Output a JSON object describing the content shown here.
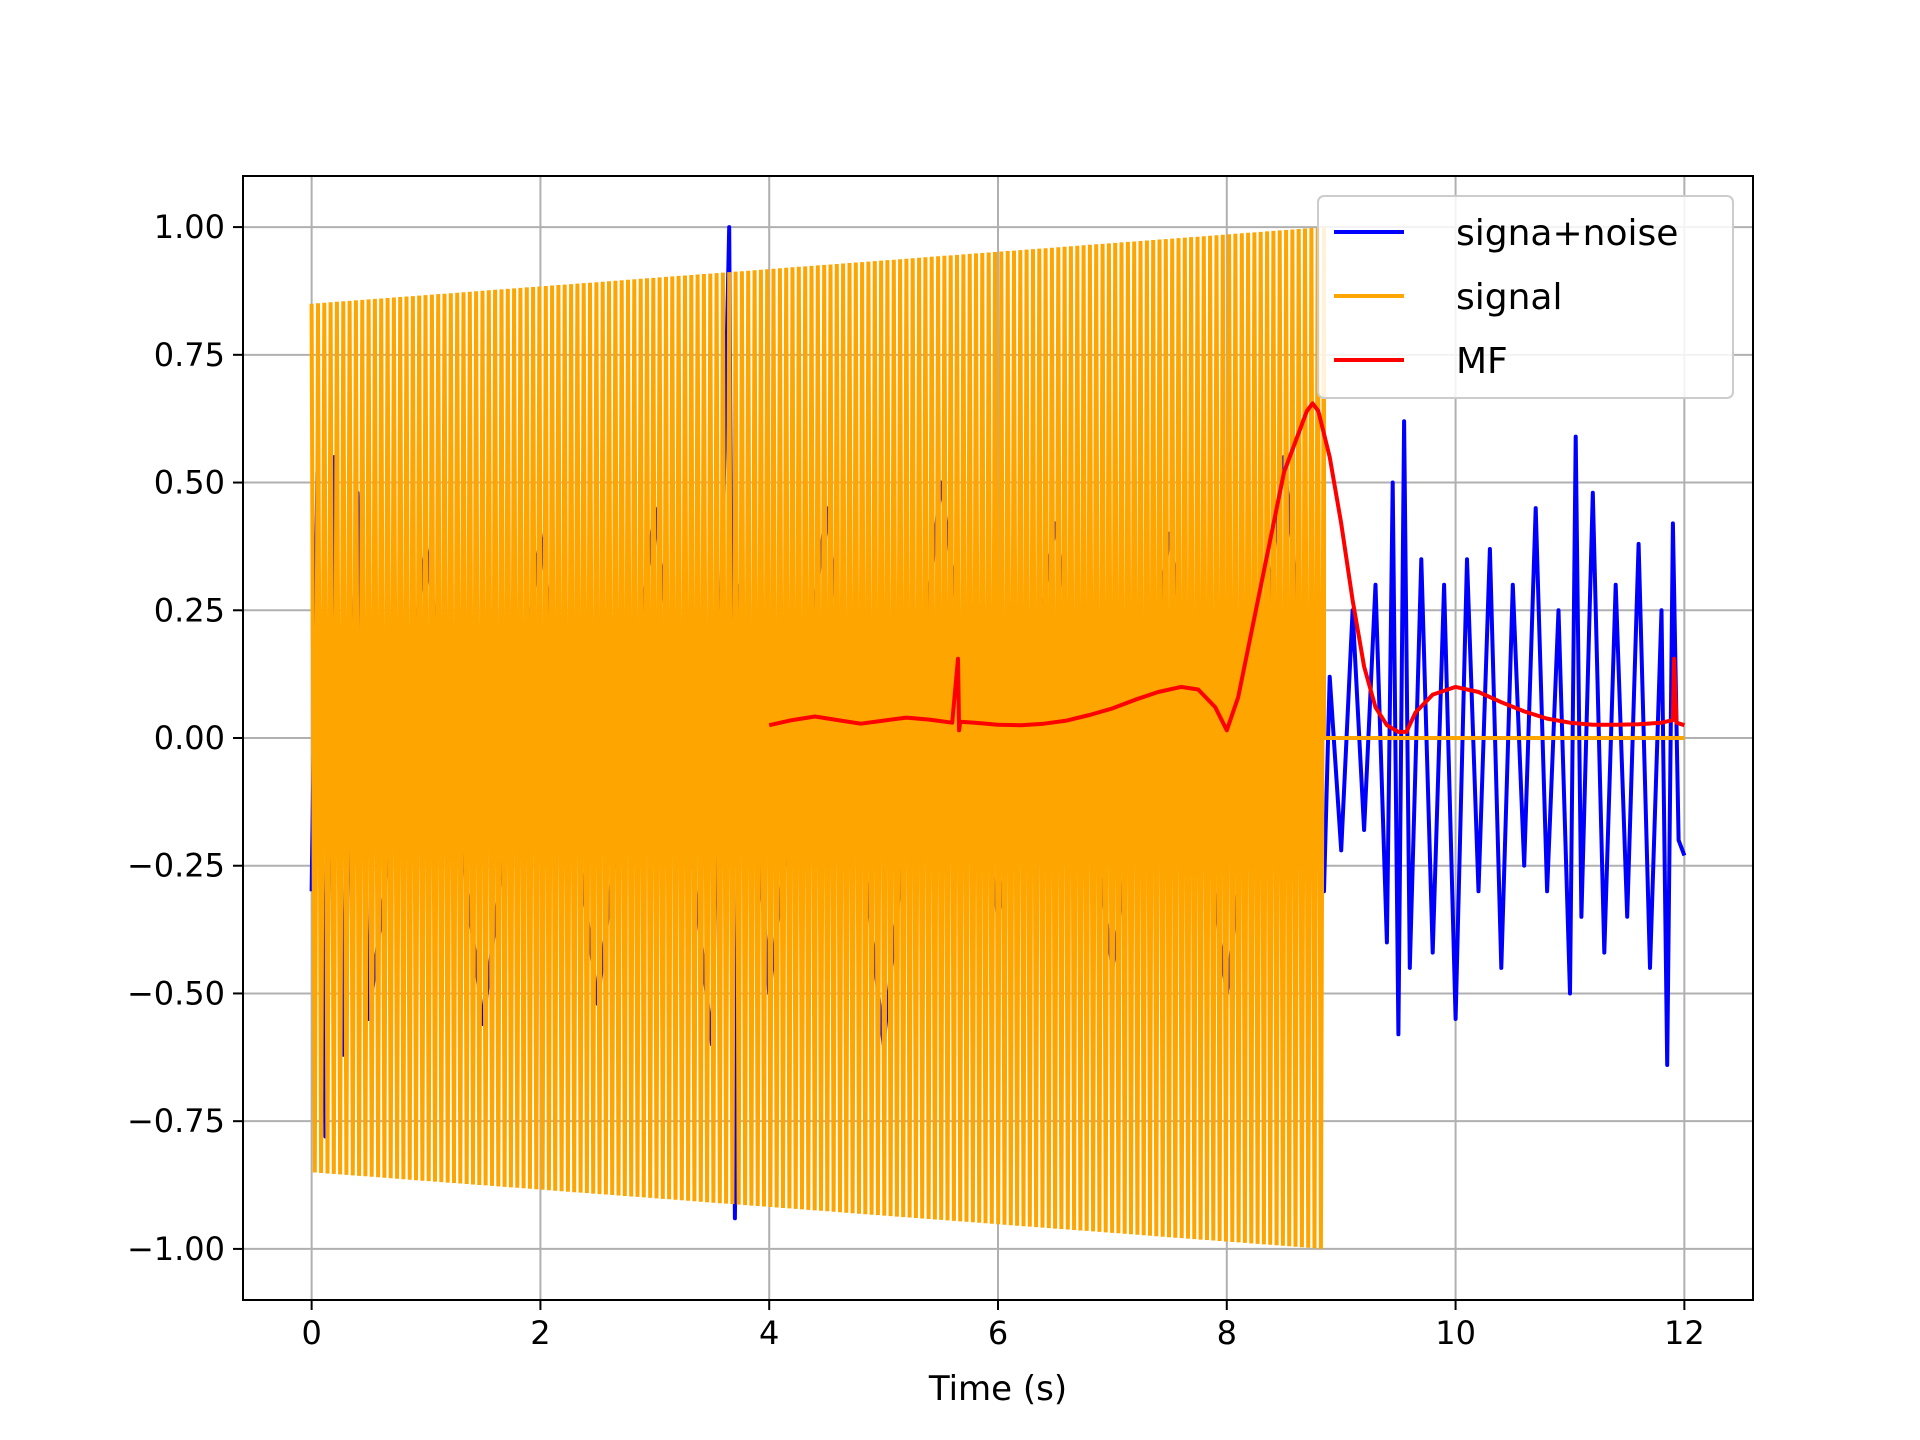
{
  "chart_data": {
    "type": "line",
    "xlabel": "Time (s)",
    "ylabel": "",
    "xlim": [
      -0.6,
      12.6
    ],
    "ylim": [
      -1.1,
      1.1
    ],
    "x_ticks": [
      0,
      2,
      4,
      6,
      8,
      10,
      12
    ],
    "x_tick_labels": [
      "0",
      "2",
      "4",
      "6",
      "8",
      "10",
      "12"
    ],
    "y_ticks": [
      1.0,
      0.75,
      0.5,
      0.25,
      0.0,
      -0.25,
      -0.5,
      -0.75,
      -1.0
    ],
    "y_tick_labels": [
      "1.00",
      "0.75",
      "0.50",
      "0.25",
      "0.00",
      "−0.25",
      "−0.50",
      "−0.75",
      "−1.00"
    ],
    "grid": true,
    "legend_position": "top-right",
    "series": [
      {
        "name": "signa+noise",
        "color": "#0000ff",
        "x": [
          0.0,
          0.05,
          0.12,
          0.2,
          0.28,
          0.4,
          0.5,
          1.0,
          1.5,
          2.0,
          2.5,
          3.0,
          3.5,
          3.65,
          3.7,
          3.75,
          4.0,
          4.5,
          5.0,
          5.5,
          6.0,
          6.5,
          7.0,
          7.5,
          8.0,
          8.5,
          8.85,
          8.9,
          9.0,
          9.1,
          9.2,
          9.3,
          9.4,
          9.45,
          9.5,
          9.55,
          9.6,
          9.7,
          9.8,
          9.9,
          10.0,
          10.1,
          10.2,
          10.3,
          10.4,
          10.5,
          10.6,
          10.7,
          10.8,
          10.9,
          11.0,
          11.05,
          11.1,
          11.2,
          11.3,
          11.4,
          11.5,
          11.6,
          11.7,
          11.8,
          11.85,
          11.9,
          11.95,
          12.0
        ],
        "y": [
          -0.3,
          0.52,
          -0.78,
          0.55,
          -0.62,
          0.48,
          -0.55,
          0.38,
          -0.56,
          0.4,
          -0.52,
          0.45,
          -0.6,
          1.0,
          -0.94,
          0.3,
          -0.5,
          0.45,
          -0.6,
          0.5,
          -0.35,
          0.42,
          -0.45,
          0.4,
          -0.5,
          0.55,
          -0.3,
          0.12,
          -0.22,
          0.25,
          -0.18,
          0.3,
          -0.4,
          0.5,
          -0.58,
          0.62,
          -0.45,
          0.35,
          -0.42,
          0.3,
          -0.55,
          0.35,
          -0.3,
          0.37,
          -0.45,
          0.3,
          -0.25,
          0.45,
          -0.3,
          0.25,
          -0.5,
          0.59,
          -0.35,
          0.48,
          -0.42,
          0.3,
          -0.35,
          0.38,
          -0.45,
          0.25,
          -0.64,
          0.42,
          -0.2,
          -0.23
        ]
      },
      {
        "name": "signal",
        "color": "#ffa500",
        "start": 0.0,
        "end": 8.85,
        "amplitude_start": 0.85,
        "amplitude_end": 1.0,
        "cycles": 160,
        "after_end_value": 0.0,
        "x_end": 12.0
      },
      {
        "name": "MF",
        "color": "#ff0000",
        "x": [
          4.0,
          4.2,
          4.4,
          4.6,
          4.8,
          5.0,
          5.2,
          5.4,
          5.6,
          5.65,
          5.66,
          5.67,
          5.8,
          6.0,
          6.2,
          6.4,
          6.6,
          6.8,
          7.0,
          7.2,
          7.4,
          7.6,
          7.75,
          7.9,
          8.0,
          8.1,
          8.3,
          8.5,
          8.7,
          8.75,
          8.8,
          8.9,
          9.0,
          9.1,
          9.2,
          9.3,
          9.4,
          9.5,
          9.57,
          9.65,
          9.8,
          10.0,
          10.2,
          10.4,
          10.6,
          10.8,
          11.0,
          11.2,
          11.4,
          11.6,
          11.8,
          11.9,
          11.91,
          11.93,
          12.0
        ],
        "y": [
          0.025,
          0.035,
          0.042,
          0.035,
          0.028,
          0.034,
          0.04,
          0.036,
          0.03,
          0.155,
          0.015,
          0.032,
          0.03,
          0.026,
          0.025,
          0.028,
          0.034,
          0.045,
          0.058,
          0.075,
          0.09,
          0.1,
          0.095,
          0.06,
          0.015,
          0.08,
          0.3,
          0.52,
          0.64,
          0.655,
          0.64,
          0.55,
          0.42,
          0.27,
          0.14,
          0.06,
          0.025,
          0.012,
          0.012,
          0.05,
          0.085,
          0.1,
          0.09,
          0.07,
          0.052,
          0.038,
          0.03,
          0.026,
          0.026,
          0.027,
          0.03,
          0.035,
          0.155,
          0.03,
          0.025
        ]
      }
    ]
  }
}
